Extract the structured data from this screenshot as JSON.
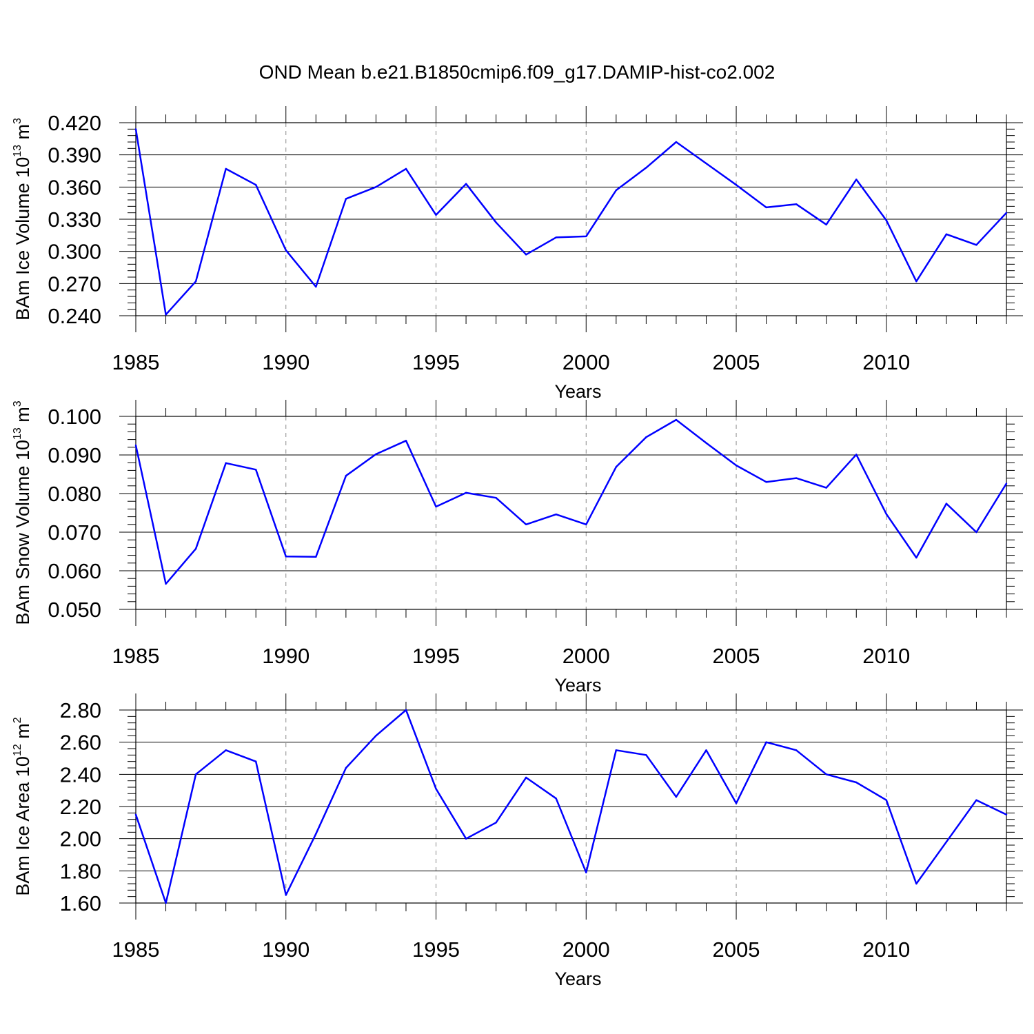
{
  "title": "OND Mean b.e21.B1850cmip6.f09_g17.DAMIP-hist-co2.002",
  "chart_data": [
    {
      "type": "line",
      "title": "OND Mean b.e21.B1850cmip6.f09_g17.DAMIP-hist-co2.002",
      "xlabel": "Years",
      "ylabel": {
        "text": "BAm Ice Volume 10",
        "sup1": "13",
        "unit": " m",
        "sup2": "3"
      },
      "xlim": [
        1985,
        2014
      ],
      "ylim": [
        0.24,
        0.42
      ],
      "yticks": [
        0.24,
        0.27,
        0.3,
        0.33,
        0.36,
        0.39,
        0.42
      ],
      "ytick_labels": [
        "0.240",
        "0.270",
        "0.300",
        "0.330",
        "0.360",
        "0.390",
        "0.420"
      ],
      "xticks": [
        1985,
        1990,
        1995,
        2000,
        2005,
        2010
      ],
      "xtick_labels": [
        "1985",
        "1990",
        "1995",
        "2000",
        "2005",
        "2010"
      ],
      "grid": "vertical dashed at major x ticks",
      "line_color": "#0000ff",
      "x": [
        1985,
        1986,
        1987,
        1988,
        1989,
        1990,
        1991,
        1992,
        1993,
        1994,
        1995,
        1996,
        1997,
        1998,
        1999,
        2000,
        2001,
        2002,
        2003,
        2004,
        2005,
        2006,
        2007,
        2008,
        2009,
        2010,
        2011,
        2012,
        2013,
        2014
      ],
      "values": [
        0.414,
        0.241,
        0.272,
        0.377,
        0.362,
        0.301,
        0.267,
        0.349,
        0.36,
        0.377,
        0.334,
        0.363,
        0.327,
        0.297,
        0.313,
        0.314,
        0.357,
        0.378,
        0.402,
        0.382,
        0.362,
        0.341,
        0.344,
        0.325,
        0.367,
        0.329,
        0.272,
        0.316,
        0.306,
        0.336
      ]
    },
    {
      "type": "line",
      "xlabel": "Years",
      "ylabel": {
        "text": "BAm Snow Volume 10",
        "sup1": "13",
        "unit": " m",
        "sup2": "3"
      },
      "xlim": [
        1985,
        2014
      ],
      "ylim": [
        0.05,
        0.1
      ],
      "yticks": [
        0.05,
        0.06,
        0.07,
        0.08,
        0.09,
        0.1
      ],
      "ytick_labels": [
        "0.050",
        "0.060",
        "0.070",
        "0.080",
        "0.090",
        "0.100"
      ],
      "xticks": [
        1985,
        1990,
        1995,
        2000,
        2005,
        2010
      ],
      "xtick_labels": [
        "1985",
        "1990",
        "1995",
        "2000",
        "2005",
        "2010"
      ],
      "grid": "vertical dashed at major x ticks",
      "line_color": "#0000ff",
      "x": [
        1985,
        1986,
        1987,
        1988,
        1989,
        1990,
        1991,
        1992,
        1993,
        1994,
        1995,
        1996,
        1997,
        1998,
        1999,
        2000,
        2001,
        2002,
        2003,
        2004,
        2005,
        2006,
        2007,
        2008,
        2009,
        2010,
        2011,
        2012,
        2013,
        2014
      ],
      "values": [
        0.0925,
        0.0566,
        0.0657,
        0.0879,
        0.0862,
        0.0637,
        0.0636,
        0.0846,
        0.0902,
        0.0937,
        0.0766,
        0.0802,
        0.0789,
        0.072,
        0.0746,
        0.072,
        0.0869,
        0.0946,
        0.0991,
        0.0931,
        0.0873,
        0.083,
        0.084,
        0.0815,
        0.0901,
        0.0747,
        0.0634,
        0.0774,
        0.07,
        0.0826
      ]
    },
    {
      "type": "line",
      "xlabel": "Years",
      "ylabel": {
        "text": "BAm Ice Area 10",
        "sup1": "12",
        "unit": " m",
        "sup2": "2"
      },
      "xlim": [
        1985,
        2014
      ],
      "ylim": [
        1.6,
        2.8
      ],
      "yticks": [
        1.6,
        1.8,
        2.0,
        2.2,
        2.4,
        2.6,
        2.8
      ],
      "ytick_labels": [
        "1.60",
        "1.80",
        "2.00",
        "2.20",
        "2.40",
        "2.60",
        "2.80"
      ],
      "xticks": [
        1985,
        1990,
        1995,
        2000,
        2005,
        2010
      ],
      "xtick_labels": [
        "1985",
        "1990",
        "1995",
        "2000",
        "2005",
        "2010"
      ],
      "grid": "vertical dashed at major x ticks",
      "line_color": "#0000ff",
      "x": [
        1985,
        1986,
        1987,
        1988,
        1989,
        1990,
        1991,
        1992,
        1993,
        1994,
        1995,
        1996,
        1997,
        1998,
        1999,
        2000,
        2001,
        2002,
        2003,
        2004,
        2005,
        2006,
        2007,
        2008,
        2009,
        2010,
        2011,
        2012,
        2013,
        2014
      ],
      "values": [
        2.15,
        1.6,
        2.4,
        2.55,
        2.48,
        1.65,
        2.03,
        2.44,
        2.64,
        2.8,
        2.31,
        2.0,
        2.1,
        2.38,
        2.25,
        1.79,
        2.55,
        2.52,
        2.26,
        2.55,
        2.22,
        2.6,
        2.55,
        2.4,
        2.35,
        2.24,
        1.72,
        1.98,
        2.24,
        2.15
      ]
    }
  ]
}
